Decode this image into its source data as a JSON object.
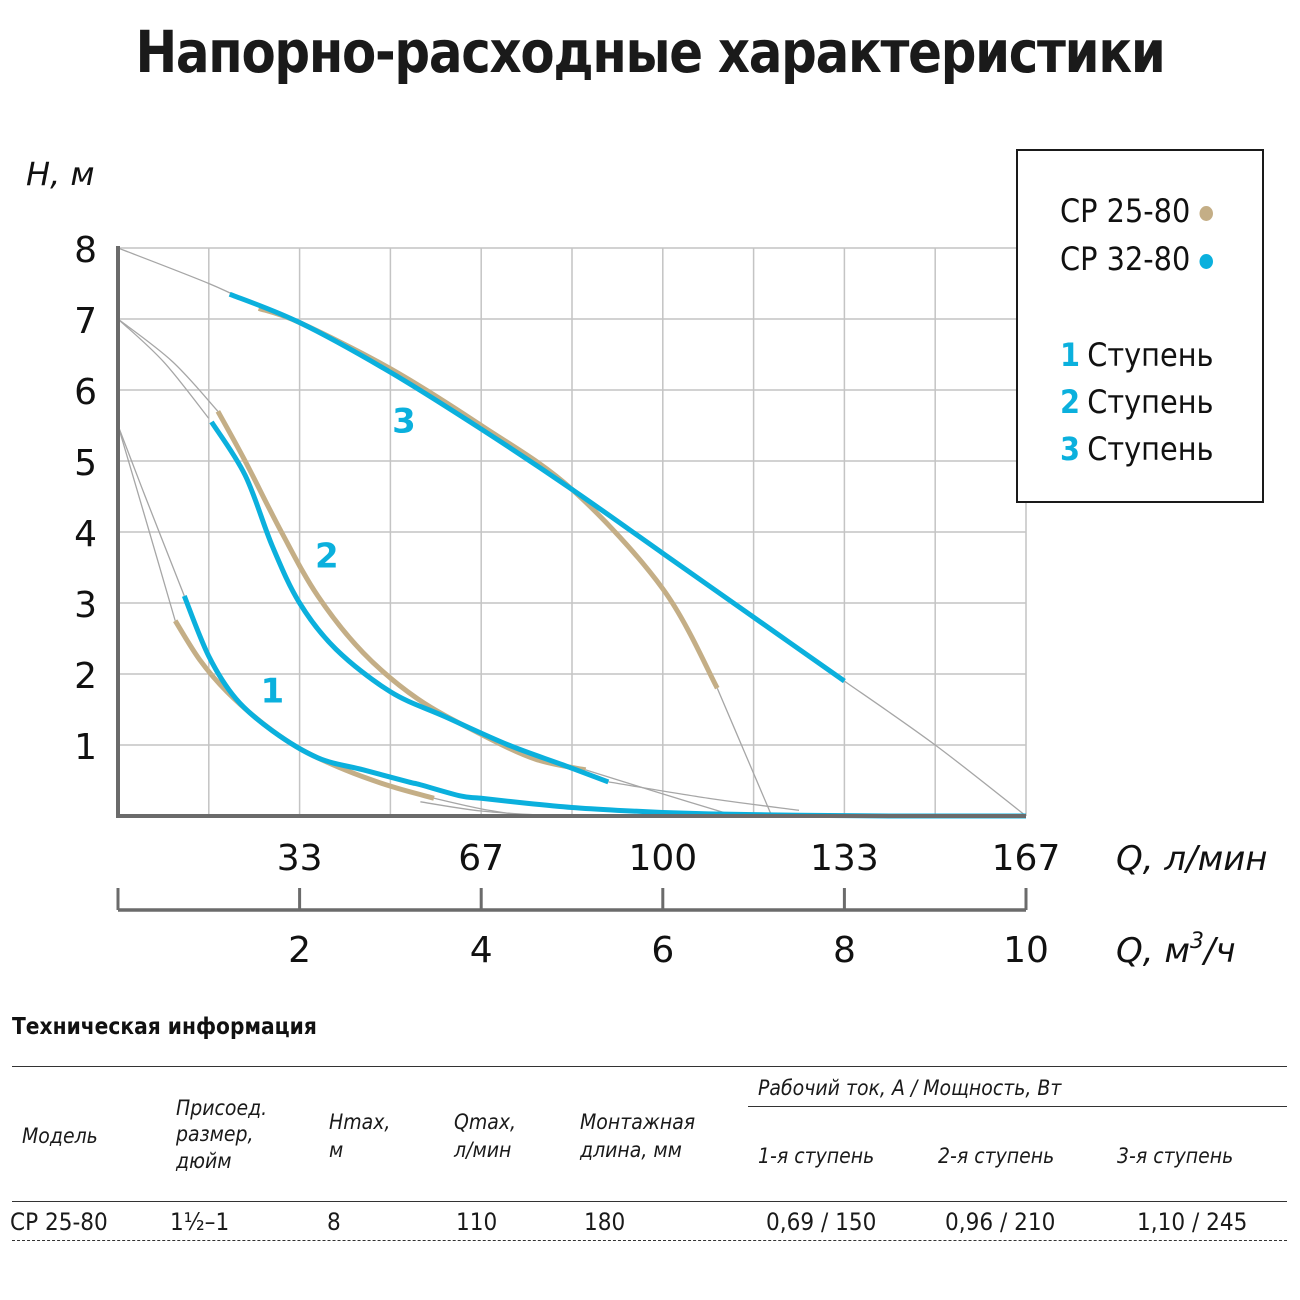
{
  "page": {
    "title": "Напорно-расходные характеристики"
  },
  "colors": {
    "cp_25_80": "#c4ae86",
    "cp_32_80": "#0bb0dd",
    "grid": "#c4c4c4",
    "axis": "#6b6b6b",
    "guide_curve": "#a6a6a6"
  },
  "chart_data": {
    "type": "line",
    "title": "Напорно-расходные характеристики",
    "ylabel": "H, м",
    "xlabel": "Q, м³/ч",
    "xlabel_secondary": "Q, л/мин",
    "ylim": [
      0,
      8
    ],
    "xlim": [
      0,
      10
    ],
    "grid": true,
    "legend_position": "top-right",
    "y_ticks": [
      "1",
      "2",
      "3",
      "4",
      "5",
      "6",
      "7",
      "8"
    ],
    "x_ticks_m3h": [
      "2",
      "4",
      "6",
      "8",
      "10"
    ],
    "x_ticks_lmin": [
      "33",
      "67",
      "100",
      "133",
      "167"
    ],
    "legend": {
      "models": [
        {
          "label": "CP 25-80",
          "color": "#c4ae86"
        },
        {
          "label": "CP 32-80",
          "color": "#0bb0dd"
        }
      ],
      "stages": [
        {
          "num": "1",
          "label": "Ступень"
        },
        {
          "num": "2",
          "label": "Ступень"
        },
        {
          "num": "3",
          "label": "Ступень"
        }
      ]
    },
    "curve_labels": [
      {
        "text": "1",
        "x": 1.7,
        "y": 1.6
      },
      {
        "text": "2",
        "x": 2.3,
        "y": 3.5
      },
      {
        "text": "3",
        "x": 3.15,
        "y": 5.4
      }
    ],
    "series": [
      {
        "name": "CP 25-80 — 1 ступень",
        "color": "#c4ae86",
        "x": [
          0.63,
          0.9,
          1.2,
          1.6,
          2.0,
          2.5,
          3.0,
          3.48
        ],
        "y": [
          2.75,
          2.2,
          1.75,
          1.3,
          0.95,
          0.65,
          0.42,
          0.25
        ]
      },
      {
        "name": "CP 32-80 — 1 ступень",
        "color": "#0bb0dd",
        "x": [
          0.73,
          1.0,
          1.3,
          1.7,
          2.2,
          2.7,
          3.2,
          3.33,
          3.78,
          4.0,
          4.5,
          5.0,
          5.5,
          6.0,
          6.5,
          7.0,
          7.5,
          8.0,
          8.5,
          9.0,
          9.5,
          10.0
        ],
        "y": [
          3.1,
          2.25,
          1.65,
          1.2,
          0.82,
          0.65,
          0.48,
          0.44,
          0.28,
          0.25,
          0.18,
          0.12,
          0.08,
          0.05,
          0.03,
          0.02,
          0.01,
          0.005,
          0.0,
          0.0,
          0.0,
          0.0
        ]
      },
      {
        "name": "CP 25-80 — 2 ступень",
        "color": "#c4ae86",
        "x": [
          1.1,
          1.4,
          1.8,
          2.2,
          2.7,
          3.3,
          4.0,
          4.6,
          5.15
        ],
        "y": [
          5.7,
          5.0,
          4.0,
          3.1,
          2.3,
          1.65,
          1.15,
          0.8,
          0.65
        ]
      },
      {
        "name": "CP 32-80 — 2 ступень",
        "color": "#0bb0dd",
        "x": [
          1.03,
          1.4,
          1.7,
          2.0,
          2.4,
          3.0,
          3.6,
          4.3,
          4.9,
          5.4
        ],
        "y": [
          5.55,
          4.8,
          3.8,
          3.0,
          2.35,
          1.75,
          1.4,
          1.0,
          0.72,
          0.48
        ]
      },
      {
        "name": "CP 25-80 — 3 ступень",
        "color": "#c4ae86",
        "x": [
          1.55,
          2.0,
          3.0,
          4.0,
          5.0,
          6.0,
          6.6
        ],
        "y": [
          7.15,
          6.95,
          6.3,
          5.5,
          4.6,
          3.2,
          1.8
        ]
      },
      {
        "name": "CP 32-80 — 3 ступень",
        "color": "#0bb0dd",
        "x": [
          1.23,
          2.0,
          3.0,
          4.0,
          5.0,
          6.0,
          7.0,
          8.0
        ],
        "y": [
          7.35,
          6.95,
          6.25,
          5.45,
          4.6,
          3.7,
          2.8,
          1.9
        ]
      }
    ],
    "guide_curves": [
      {
        "x": [
          0,
          1.0,
          1.5
        ],
        "y": [
          8,
          7.5,
          7.2
        ],
        "note": "shutoff to stage-3 start"
      },
      {
        "x": [
          8.0,
          9.0,
          10.0
        ],
        "y": [
          1.9,
          1.0,
          0
        ],
        "note": "CP 32-80 stage 3 tail"
      },
      {
        "x": [
          6.6,
          6.9,
          7.2
        ],
        "y": [
          1.8,
          0.9,
          0
        ],
        "note": "CP 25-80 stage 3 tail"
      },
      {
        "x": [
          0,
          0.5,
          1.0
        ],
        "y": [
          7,
          6.4,
          5.6
        ],
        "note": "stage 2 CP 32-80 lead-in"
      },
      {
        "x": [
          0,
          0.6,
          1.1
        ],
        "y": [
          7,
          6.4,
          5.7
        ],
        "note": "stage 2 CP 25-80 lead-in"
      },
      {
        "x": [
          5.15,
          5.9,
          6.8
        ],
        "y": [
          0.65,
          0.35,
          0
        ],
        "note": "CP 25-80 stage 2 tail"
      },
      {
        "x": [
          5.4,
          6.5,
          7.5
        ],
        "y": [
          0.48,
          0.25,
          0.08
        ],
        "note": "CP 32-80 stage 2 tail"
      },
      {
        "x": [
          0,
          0.3,
          0.73
        ],
        "y": [
          5.5,
          4.5,
          3.1
        ],
        "note": "stage 1 CP 32-80 lead-in"
      },
      {
        "x": [
          0,
          0.3,
          0.63
        ],
        "y": [
          5.5,
          4.2,
          2.75
        ],
        "note": "stage 1 CP 25-80 lead-in"
      },
      {
        "x": [
          3.48,
          4.0,
          4.5
        ],
        "y": [
          0.25,
          0.1,
          0
        ],
        "note": "CP 25-80 stage 1 tail"
      },
      {
        "x": [
          3.33,
          4.0,
          4.8
        ],
        "y": [
          0.2,
          0.07,
          0
        ],
        "note": "CP 32-80 stage 1 tail"
      }
    ]
  },
  "axes": {
    "y_title": "H, м",
    "x_title_lmin": "Q, л/мин",
    "x_title_m3h_prefix": "Q, м",
    "x_title_m3h_sup": "3",
    "x_title_m3h_suffix": "/ч"
  },
  "legend": {
    "model_1": "CP 25-80",
    "model_2": "CP 32-80",
    "stage_1_num": "1",
    "stage_2_num": "2",
    "stage_3_num": "3",
    "stage_label": "Ступень"
  },
  "tech_info": {
    "title": "Техническая информация",
    "headers": {
      "model": "Модель",
      "connection_1": "Присоед.",
      "connection_2": "размер,",
      "connection_3": "дюйм",
      "hmax_1": "Hmax,",
      "hmax_2": "м",
      "qmax_1": "Qmax,",
      "qmax_2": "л/мин",
      "length_1": "Монтажная",
      "length_2": "длина, мм",
      "group": "Рабочий ток, А / Мощность, Вт",
      "stage1": "1-я ступень",
      "stage2": "2-я ступень",
      "stage3": "3-я ступень"
    },
    "rows": [
      {
        "model": "CP 25-80",
        "connection": "1½–1",
        "hmax": "8",
        "qmax": "110",
        "length": "180",
        "stage1": "0,69 / 150",
        "stage2": "0,96 / 210",
        "stage3": "1,10 / 245"
      }
    ]
  }
}
